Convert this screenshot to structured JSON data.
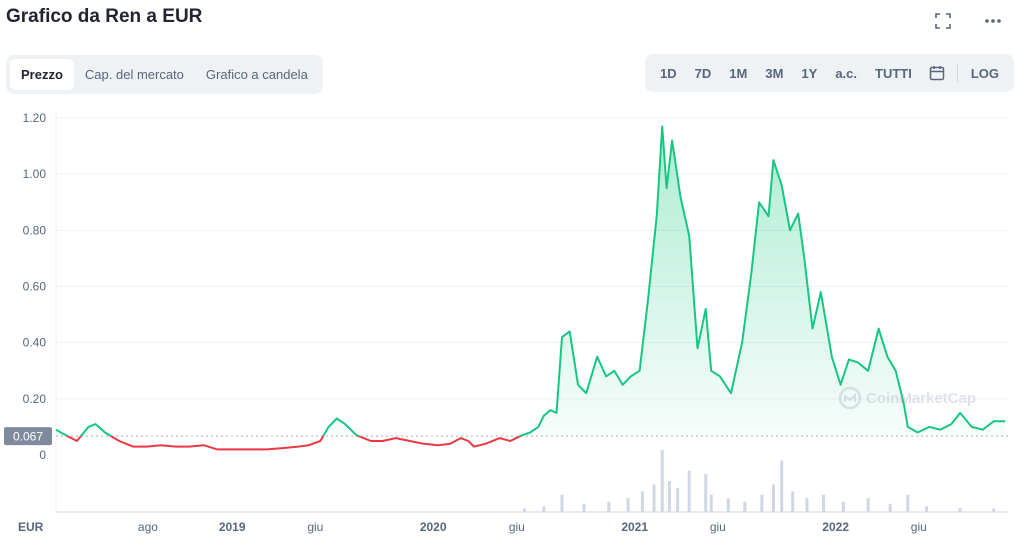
{
  "header": {
    "title": "Grafico da Ren a EUR"
  },
  "icons": {
    "fullscreen": "fullscreen-icon",
    "more": "more-icon",
    "calendar": "calendar-icon",
    "watermark": "coinmarketcap-logo"
  },
  "tabs": [
    {
      "label": "Prezzo",
      "active": true
    },
    {
      "label": "Cap. del mercato",
      "active": false
    },
    {
      "label": "Grafico a candela",
      "active": false
    }
  ],
  "ranges": [
    "1D",
    "7D",
    "1M",
    "3M",
    "1Y",
    "a.c.",
    "TUTTI"
  ],
  "scale_toggle": "LOG",
  "watermark_text": "CoinMarketCap",
  "colors": {
    "up": "#16c784",
    "down": "#ea3943",
    "grid": "#eff2f5",
    "axis_text": "#58667e",
    "badge": "#808a9d"
  },
  "chart_data": {
    "type": "line",
    "title": "Grafico da Ren a EUR",
    "xlabel": "",
    "ylabel": "",
    "unit": "EUR",
    "ylim": [
      0,
      1.2
    ],
    "yticks": [
      0,
      0.2,
      0.4,
      0.6,
      0.8,
      1.0,
      1.2
    ],
    "ytick_labels": [
      "0",
      "0.20",
      "0.40",
      "0.60",
      "0.80",
      "1.00",
      "1.20"
    ],
    "xticks": [
      {
        "date": "2018-08-01",
        "label": "ago"
      },
      {
        "date": "2019-01-01",
        "label": "2019"
      },
      {
        "date": "2019-06-01",
        "label": "giu"
      },
      {
        "date": "2020-01-01",
        "label": "2020"
      },
      {
        "date": "2020-06-01",
        "label": "giu"
      },
      {
        "date": "2021-01-01",
        "label": "2021"
      },
      {
        "date": "2021-06-01",
        "label": "giu"
      },
      {
        "date": "2022-01-01",
        "label": "2022"
      },
      {
        "date": "2022-06-01",
        "label": "giu"
      }
    ],
    "xlim": [
      "2018-02-15",
      "2022-11-10"
    ],
    "baseline": 0.067,
    "baseline_label": "0.067",
    "grid": true,
    "legend": "none",
    "series": [
      {
        "x": [
          "2018-02-15",
          "2018-03-05",
          "2018-03-25",
          "2018-04-15",
          "2018-04-28",
          "2018-05-15",
          "2018-06-10",
          "2018-07-05",
          "2018-07-30",
          "2018-08-25",
          "2018-09-20",
          "2018-10-15",
          "2018-11-10",
          "2018-12-05",
          "2019-01-05",
          "2019-02-05",
          "2019-03-05",
          "2019-04-05",
          "2019-05-01",
          "2019-05-20",
          "2019-06-10",
          "2019-06-25",
          "2019-07-10",
          "2019-07-25",
          "2019-08-15",
          "2019-09-10",
          "2019-10-01",
          "2019-10-25",
          "2019-11-20",
          "2019-12-15",
          "2020-01-10",
          "2020-02-01",
          "2020-02-20",
          "2020-03-05",
          "2020-03-15",
          "2020-04-05",
          "2020-05-01",
          "2020-05-20",
          "2020-06-10",
          "2020-06-25",
          "2020-07-10",
          "2020-07-20",
          "2020-08-01",
          "2020-08-12",
          "2020-08-22",
          "2020-09-05",
          "2020-09-20",
          "2020-10-05",
          "2020-10-25",
          "2020-11-10",
          "2020-11-25",
          "2020-12-10",
          "2020-12-25",
          "2021-01-10",
          "2021-01-25",
          "2021-02-10",
          "2021-02-20",
          "2021-02-28",
          "2021-03-10",
          "2021-03-25",
          "2021-04-10",
          "2021-04-25",
          "2021-05-10",
          "2021-05-20",
          "2021-06-05",
          "2021-06-25",
          "2021-07-15",
          "2021-08-01",
          "2021-08-15",
          "2021-09-01",
          "2021-09-10",
          "2021-09-25",
          "2021-10-10",
          "2021-10-25",
          "2021-11-05",
          "2021-11-20",
          "2021-12-05",
          "2021-12-25",
          "2022-01-10",
          "2022-01-25",
          "2022-02-10",
          "2022-03-01",
          "2022-03-20",
          "2022-04-05",
          "2022-04-20",
          "2022-05-05",
          "2022-05-12",
          "2022-05-30",
          "2022-06-20",
          "2022-07-10",
          "2022-07-30",
          "2022-08-15",
          "2022-09-05",
          "2022-09-25",
          "2022-10-15",
          "2022-11-05"
        ],
        "values": [
          0.09,
          0.07,
          0.05,
          0.1,
          0.11,
          0.08,
          0.05,
          0.03,
          0.03,
          0.035,
          0.03,
          0.03,
          0.035,
          0.02,
          0.02,
          0.02,
          0.02,
          0.025,
          0.03,
          0.035,
          0.05,
          0.1,
          0.13,
          0.11,
          0.07,
          0.05,
          0.05,
          0.06,
          0.05,
          0.04,
          0.035,
          0.04,
          0.06,
          0.05,
          0.03,
          0.04,
          0.06,
          0.05,
          0.07,
          0.08,
          0.1,
          0.14,
          0.16,
          0.15,
          0.42,
          0.44,
          0.25,
          0.22,
          0.35,
          0.28,
          0.3,
          0.25,
          0.28,
          0.3,
          0.55,
          0.85,
          1.17,
          0.95,
          1.12,
          0.92,
          0.78,
          0.38,
          0.52,
          0.3,
          0.28,
          0.22,
          0.4,
          0.65,
          0.9,
          0.85,
          1.05,
          0.96,
          0.8,
          0.86,
          0.7,
          0.45,
          0.58,
          0.35,
          0.25,
          0.34,
          0.33,
          0.3,
          0.45,
          0.35,
          0.3,
          0.18,
          0.1,
          0.08,
          0.1,
          0.09,
          0.11,
          0.15,
          0.1,
          0.09,
          0.12,
          0.12
        ]
      }
    ],
    "volume": {
      "x": [
        "2020-06-15",
        "2020-07-20",
        "2020-08-22",
        "2020-10-01",
        "2020-11-15",
        "2020-12-20",
        "2021-01-15",
        "2021-02-05",
        "2021-02-20",
        "2021-03-05",
        "2021-03-20",
        "2021-04-10",
        "2021-05-10",
        "2021-05-20",
        "2021-06-20",
        "2021-07-20",
        "2021-08-20",
        "2021-09-10",
        "2021-09-25",
        "2021-10-15",
        "2021-11-10",
        "2021-12-10",
        "2022-01-15",
        "2022-03-01",
        "2022-04-10",
        "2022-05-12",
        "2022-06-15",
        "2022-08-15",
        "2022-10-15"
      ],
      "values": [
        5,
        8,
        25,
        12,
        15,
        20,
        30,
        40,
        90,
        45,
        35,
        60,
        55,
        25,
        20,
        15,
        25,
        40,
        75,
        30,
        20,
        25,
        15,
        20,
        12,
        25,
        8,
        6,
        5
      ]
    }
  }
}
